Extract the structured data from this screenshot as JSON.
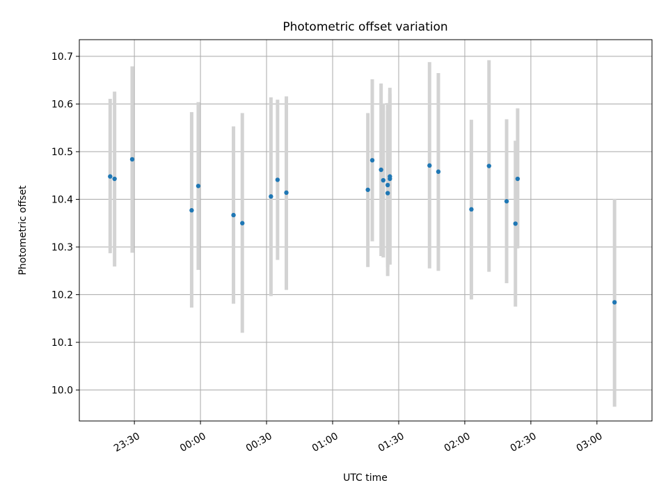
{
  "chart_data": {
    "type": "scatter",
    "title": "Photometric offset variation",
    "xlabel": "UTC time",
    "ylabel": "Photometric offset",
    "x_type": "time",
    "xlim": [
      "23:05",
      "03:25"
    ],
    "ylim": [
      9.935,
      10.735
    ],
    "x_ticks": [
      "23:30",
      "00:00",
      "00:30",
      "01:00",
      "01:30",
      "02:00",
      "02:30",
      "03:00"
    ],
    "y_ticks": [
      "10.0",
      "10.1",
      "10.2",
      "10.3",
      "10.4",
      "10.5",
      "10.6",
      "10.7"
    ],
    "grid": true,
    "marker_color": "#1f77b4",
    "errorbar_color": "#d3d3d3",
    "series": [
      {
        "points": [
          {
            "x": "23:19",
            "y": 10.448,
            "ylow": 10.287,
            "yhigh": 10.611
          },
          {
            "x": "23:21",
            "y": 10.443,
            "ylow": 10.259,
            "yhigh": 10.626
          },
          {
            "x": "23:29",
            "y": 10.484,
            "ylow": 10.288,
            "yhigh": 10.679
          },
          {
            "x": "23:56",
            "y": 10.377,
            "ylow": 10.173,
            "yhigh": 10.583
          },
          {
            "x": "23:59",
            "y": 10.428,
            "ylow": 10.252,
            "yhigh": 10.604
          },
          {
            "x": "00:15",
            "y": 10.367,
            "ylow": 10.181,
            "yhigh": 10.553
          },
          {
            "x": "00:19",
            "y": 10.35,
            "ylow": 10.12,
            "yhigh": 10.581
          },
          {
            "x": "00:32",
            "y": 10.406,
            "ylow": 10.197,
            "yhigh": 10.614
          },
          {
            "x": "00:35",
            "y": 10.441,
            "ylow": 10.273,
            "yhigh": 10.609
          },
          {
            "x": "00:39",
            "y": 10.414,
            "ylow": 10.21,
            "yhigh": 10.616
          },
          {
            "x": "01:16",
            "y": 10.42,
            "ylow": 10.258,
            "yhigh": 10.581
          },
          {
            "x": "01:18",
            "y": 10.482,
            "ylow": 10.312,
            "yhigh": 10.652
          },
          {
            "x": "01:22",
            "y": 10.462,
            "ylow": 10.281,
            "yhigh": 10.643
          },
          {
            "x": "01:23",
            "y": 10.44,
            "ylow": 10.278,
            "yhigh": 10.601
          },
          {
            "x": "01:25",
            "y": 10.43,
            "ylow": 10.258,
            "yhigh": 10.602
          },
          {
            "x": "01:25",
            "y": 10.413,
            "ylow": 10.239,
            "yhigh": 10.586
          },
          {
            "x": "01:26",
            "y": 10.443,
            "ylow": 10.263,
            "yhigh": 10.622
          },
          {
            "x": "01:26",
            "y": 10.448,
            "ylow": 10.264,
            "yhigh": 10.634
          },
          {
            "x": "01:44",
            "y": 10.471,
            "ylow": 10.255,
            "yhigh": 10.688
          },
          {
            "x": "01:48",
            "y": 10.458,
            "ylow": 10.25,
            "yhigh": 10.665
          },
          {
            "x": "02:03",
            "y": 10.379,
            "ylow": 10.19,
            "yhigh": 10.567
          },
          {
            "x": "02:11",
            "y": 10.47,
            "ylow": 10.248,
            "yhigh": 10.692
          },
          {
            "x": "02:19",
            "y": 10.396,
            "ylow": 10.224,
            "yhigh": 10.568
          },
          {
            "x": "02:23",
            "y": 10.349,
            "ylow": 10.175,
            "yhigh": 10.523
          },
          {
            "x": "02:24",
            "y": 10.443,
            "ylow": 10.297,
            "yhigh": 10.591
          },
          {
            "x": "03:08",
            "y": 10.184,
            "ylow": 9.965,
            "yhigh": 10.401
          }
        ]
      }
    ]
  }
}
